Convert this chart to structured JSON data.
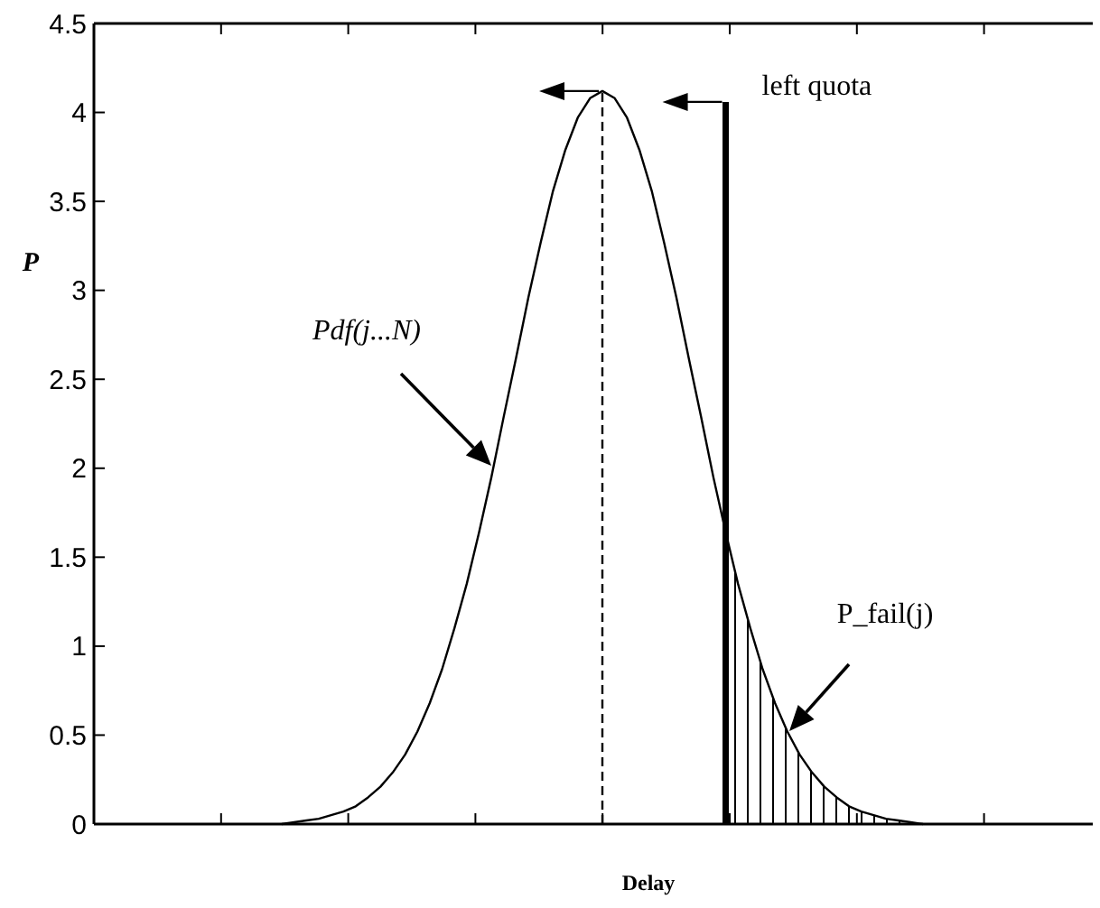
{
  "chart_data": {
    "type": "line",
    "xlabel": "Delay",
    "ylabel": "P",
    "categories": [
      null,
      null,
      null,
      null,
      null,
      null,
      null,
      null,
      null,
      null,
      null,
      null,
      null,
      null,
      null,
      null,
      null,
      null,
      null,
      null,
      null,
      null,
      null,
      null,
      null,
      null,
      null,
      null,
      null,
      null,
      null,
      null,
      null,
      null,
      null,
      null,
      null,
      null,
      null,
      null,
      null,
      null,
      null,
      null,
      null,
      null,
      null,
      null,
      null,
      null,
      null,
      null,
      null
    ],
    "ylim": [
      0,
      4.5
    ],
    "yticks": [
      0,
      0.5,
      1,
      1.5,
      2,
      2.5,
      3,
      3.5,
      4,
      4.5
    ],
    "tick_labels": "y",
    "grid": false,
    "marker": "none",
    "series": [
      {
        "color": "#000000",
        "line_style": "solid",
        "values": [
          0,
          0.01,
          0.02,
          0.03,
          0.05,
          0.07,
          0.1,
          0.15,
          0.21,
          0.29,
          0.39,
          0.52,
          0.68,
          0.87,
          1.1,
          1.35,
          1.64,
          1.95,
          2.29,
          2.62,
          2.96,
          3.27,
          3.56,
          3.79,
          3.97,
          4.08,
          4.12,
          4.08,
          3.97,
          3.79,
          3.56,
          3.27,
          2.96,
          2.62,
          2.29,
          1.95,
          1.64,
          1.35,
          1.1,
          0.87,
          0.68,
          0.52,
          0.39,
          0.29,
          0.21,
          0.15,
          0.1,
          0.07,
          0.05,
          0.03,
          0.02,
          0.01,
          0
        ]
      },
      {
        "type": "area",
        "color": "#000000",
        "values": [
          null,
          null,
          null,
          null,
          null,
          null,
          null,
          null,
          null,
          null,
          null,
          null,
          null,
          null,
          null,
          null,
          null,
          null,
          null,
          null,
          null,
          null,
          null,
          null,
          null,
          null,
          null,
          null,
          null,
          null,
          null,
          null,
          null,
          null,
          null,
          null,
          1.64,
          1.35,
          1.1,
          0.87,
          0.68,
          0.52,
          0.39,
          0.29,
          0.21,
          0.15,
          0.1,
          0.07,
          0.05,
          0.03,
          0.02,
          0.01,
          0
        ]
      }
    ],
    "annotations": [
      "left quota",
      "Pdf(j...N)",
      "P_fail(j)"
    ]
  }
}
